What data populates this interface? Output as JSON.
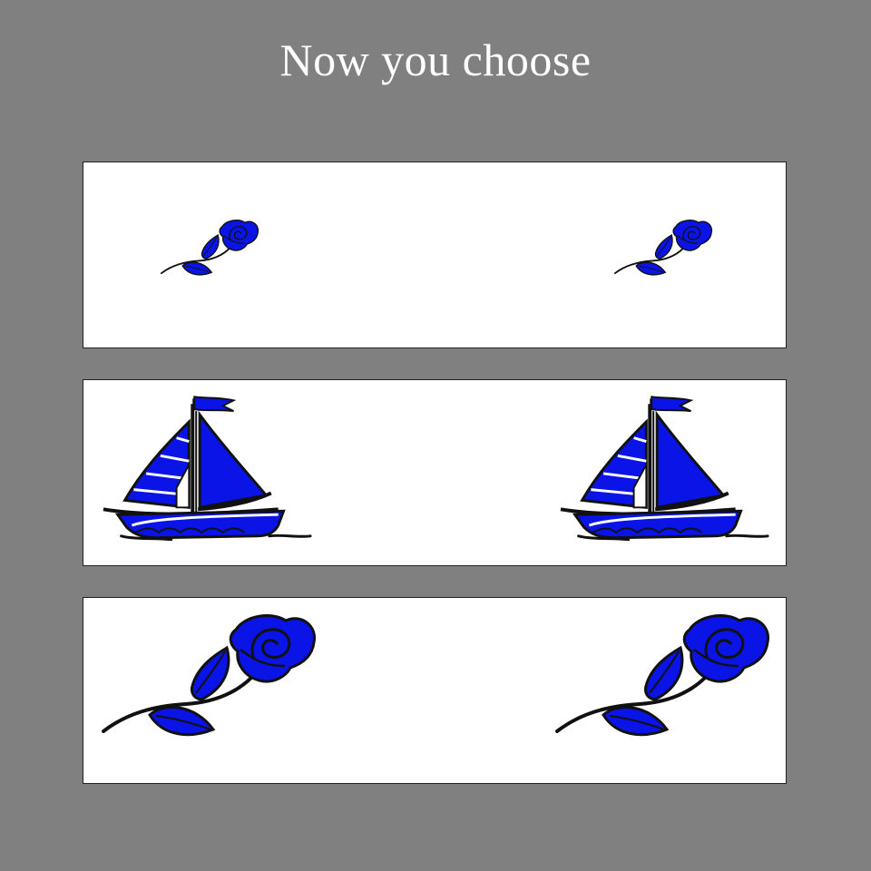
{
  "title": "Now you choose",
  "colors": {
    "background": "#808080",
    "panel": "#ffffff",
    "accent": "#0a14e6",
    "outline": "#111111"
  },
  "choices": [
    {
      "id": 1,
      "items": [
        "rose-icon",
        "rose-icon"
      ],
      "size": "small"
    },
    {
      "id": 2,
      "items": [
        "sailboat-icon",
        "sailboat-icon"
      ],
      "size": "large"
    },
    {
      "id": 3,
      "items": [
        "rose-icon",
        "rose-icon"
      ],
      "size": "large"
    }
  ]
}
